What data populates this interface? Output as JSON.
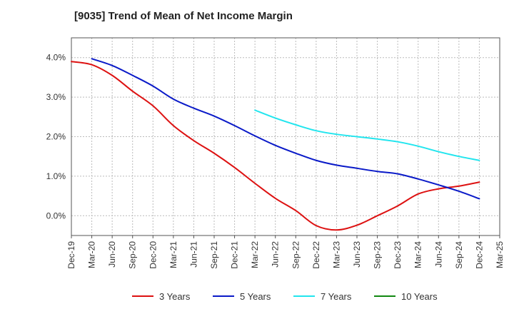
{
  "chart_data": {
    "type": "line",
    "title": "[9035]  Trend of Mean of Net Income Margin",
    "xlabel": "",
    "ylabel": "",
    "x_ticks": [
      "Dec-19",
      "Mar-20",
      "Jun-20",
      "Sep-20",
      "Dec-20",
      "Mar-21",
      "Jun-21",
      "Sep-21",
      "Dec-21",
      "Mar-22",
      "Jun-22",
      "Sep-22",
      "Dec-22",
      "Mar-23",
      "Jun-23",
      "Sep-23",
      "Dec-23",
      "Mar-24",
      "Jun-24",
      "Sep-24",
      "Dec-24",
      "Mar-25"
    ],
    "y_ticks": [
      "0.0%",
      "1.0%",
      "2.0%",
      "3.0%",
      "4.0%"
    ],
    "ylim": [
      -0.5,
      4.5
    ],
    "y_unit": "%",
    "grid": true,
    "legend_position": "bottom",
    "series": [
      {
        "name": "3 Years",
        "color": "#dd1111",
        "x": [
          "Dec-19",
          "Mar-20",
          "Jun-20",
          "Sep-20",
          "Dec-20",
          "Mar-21",
          "Jun-21",
          "Sep-21",
          "Dec-21",
          "Mar-22",
          "Jun-22",
          "Sep-22",
          "Dec-22",
          "Mar-23",
          "Jun-23",
          "Sep-23",
          "Dec-23",
          "Mar-24",
          "Jun-24",
          "Sep-24",
          "Dec-24"
        ],
        "values": [
          3.9,
          3.82,
          3.55,
          3.15,
          2.78,
          2.28,
          1.9,
          1.58,
          1.22,
          0.82,
          0.44,
          0.13,
          -0.25,
          -0.36,
          -0.24,
          0.0,
          0.25,
          0.55,
          0.68,
          0.75,
          0.85
        ]
      },
      {
        "name": "5 Years",
        "color": "#0a1ac8",
        "x": [
          "Mar-20",
          "Jun-20",
          "Sep-20",
          "Dec-20",
          "Mar-21",
          "Jun-21",
          "Sep-21",
          "Dec-21",
          "Mar-22",
          "Jun-22",
          "Sep-22",
          "Dec-22",
          "Mar-23",
          "Jun-23",
          "Sep-23",
          "Dec-23",
          "Mar-24",
          "Jun-24",
          "Sep-24",
          "Dec-24"
        ],
        "values": [
          3.97,
          3.8,
          3.55,
          3.28,
          2.95,
          2.72,
          2.52,
          2.28,
          2.02,
          1.78,
          1.58,
          1.4,
          1.28,
          1.2,
          1.12,
          1.06,
          0.93,
          0.78,
          0.62,
          0.43
        ]
      },
      {
        "name": "7 Years",
        "color": "#22e5ee",
        "x": [
          "Mar-22",
          "Jun-22",
          "Sep-22",
          "Dec-22",
          "Mar-23",
          "Jun-23",
          "Sep-23",
          "Dec-23",
          "Mar-24",
          "Jun-24",
          "Sep-24",
          "Dec-24"
        ],
        "values": [
          2.67,
          2.47,
          2.3,
          2.15,
          2.06,
          2.0,
          1.94,
          1.87,
          1.76,
          1.62,
          1.5,
          1.4
        ]
      },
      {
        "name": "10 Years",
        "color": "#118811",
        "x": [],
        "values": []
      }
    ]
  }
}
